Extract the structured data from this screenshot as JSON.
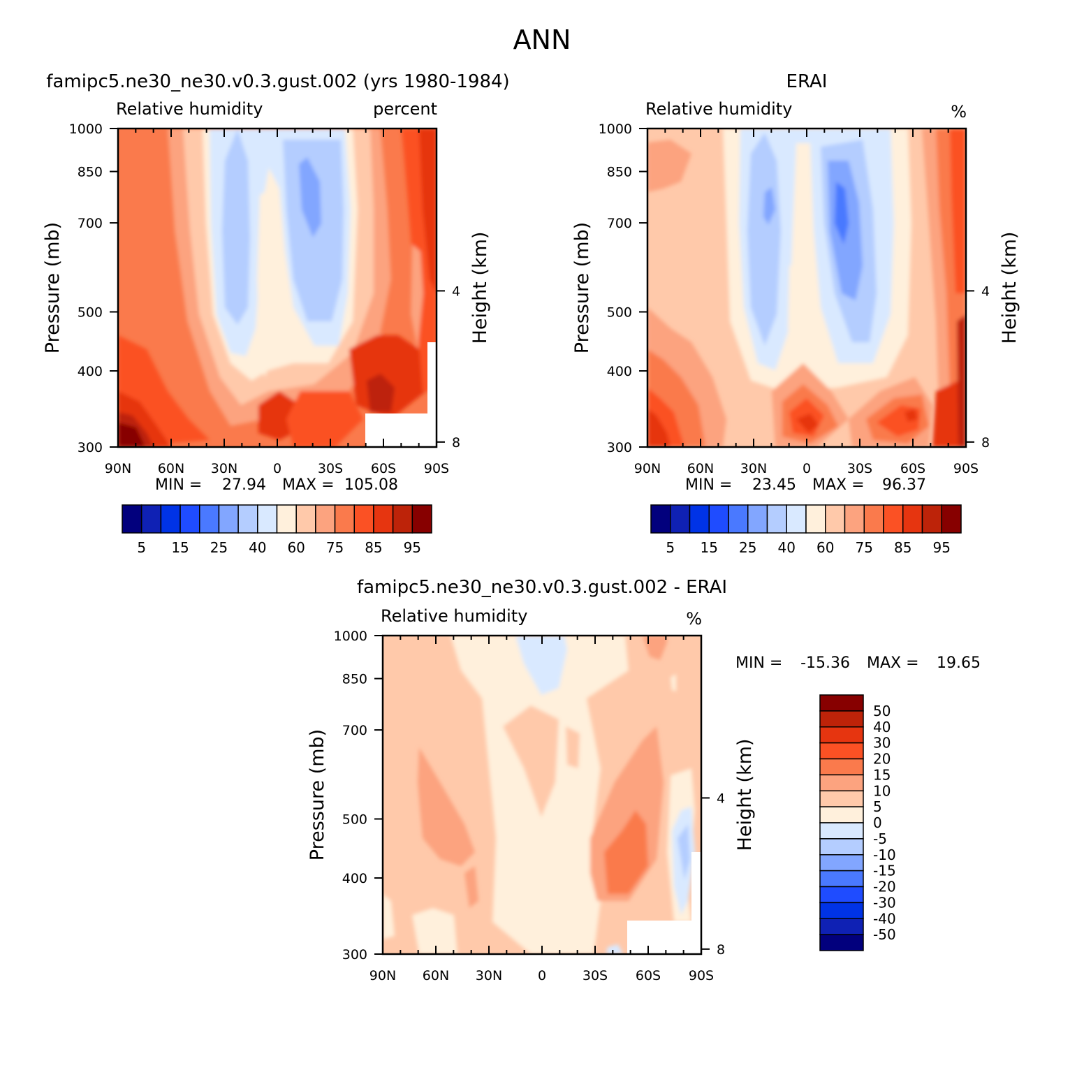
{
  "figure_title": "ANN",
  "chart_data": [
    {
      "type": "heatmap",
      "panel": "model",
      "title": "famipc5.ne30_ne30.v0.3.gust.002 (yrs 1980-1984)",
      "variable": "Relative humidity",
      "units": "percent",
      "xlabel": "",
      "ylabel": "Pressure (mb)",
      "ylabel_right": "Height (km)",
      "x_ticks": [
        "90N",
        "60N",
        "30N",
        "0",
        "30S",
        "60S",
        "90S"
      ],
      "y_ticks": [
        "300",
        "400",
        "500",
        "700",
        "850",
        "1000"
      ],
      "y_ticks_right": [
        "8",
        "4"
      ],
      "ylim": [
        1000,
        300
      ],
      "min_label": "MIN =",
      "min_value": "27.94",
      "max_label": "MAX =",
      "max_value": "105.08",
      "colorbar_labels": [
        "5",
        "15",
        "25",
        "40",
        "60",
        "75",
        "85",
        "95"
      ],
      "colorbar_colors": [
        "#02007d",
        "#0f21b4",
        "#0033e6",
        "#1f4cff",
        "#4a79ff",
        "#82a6ff",
        "#b4cdff",
        "#d9e9ff",
        "#fff0dc",
        "#ffc9aa",
        "#fca37f",
        "#fa7a4c",
        "#fb5124",
        "#e63510",
        "#bd2309",
        "#870000"
      ]
    },
    {
      "type": "heatmap",
      "panel": "obs",
      "title": "ERAI",
      "variable": "Relative humidity",
      "units": "%",
      "xlabel": "",
      "ylabel": "Pressure (mb)",
      "ylabel_right": "Height (km)",
      "x_ticks": [
        "90N",
        "60N",
        "30N",
        "0",
        "30S",
        "60S",
        "90S"
      ],
      "y_ticks": [
        "300",
        "400",
        "500",
        "700",
        "850",
        "1000"
      ],
      "y_ticks_right": [
        "8",
        "4"
      ],
      "ylim": [
        1000,
        300
      ],
      "min_label": "MIN =",
      "min_value": "23.45",
      "max_label": "MAX =",
      "max_value": "96.37",
      "colorbar_labels": [
        "5",
        "15",
        "25",
        "40",
        "60",
        "75",
        "85",
        "95"
      ],
      "colorbar_colors": [
        "#02007d",
        "#0f21b4",
        "#0033e6",
        "#1f4cff",
        "#4a79ff",
        "#82a6ff",
        "#b4cdff",
        "#d9e9ff",
        "#fff0dc",
        "#ffc9aa",
        "#fca37f",
        "#fa7a4c",
        "#fb5124",
        "#e63510",
        "#bd2309",
        "#870000"
      ]
    },
    {
      "type": "heatmap",
      "panel": "difference",
      "title": "famipc5.ne30_ne30.v0.3.gust.002 - ERAI",
      "variable": "Relative humidity",
      "units": "%",
      "xlabel": "",
      "ylabel": "Pressure (mb)",
      "ylabel_right": "Height (km)",
      "x_ticks": [
        "90N",
        "60N",
        "30N",
        "0",
        "30S",
        "60S",
        "90S"
      ],
      "y_ticks": [
        "300",
        "400",
        "500",
        "700",
        "850",
        "1000"
      ],
      "y_ticks_right": [
        "8",
        "4"
      ],
      "ylim": [
        1000,
        300
      ],
      "min_label": "MIN =",
      "min_value": "-15.36",
      "max_label": "MAX =",
      "max_value": "19.65",
      "colorbar_labels": [
        "50",
        "40",
        "30",
        "20",
        "15",
        "10",
        "5",
        "0",
        "-5",
        "-10",
        "-15",
        "-20",
        "-30",
        "-40",
        "-50"
      ],
      "colorbar_colors": [
        "#870000",
        "#bd2309",
        "#e63510",
        "#fb5124",
        "#fa7a4c",
        "#fca37f",
        "#ffc9aa",
        "#fff0dc",
        "#d9e9ff",
        "#b4cdff",
        "#82a6ff",
        "#4a79ff",
        "#1f4cff",
        "#0033e6",
        "#0f21b4",
        "#02007d"
      ]
    }
  ]
}
